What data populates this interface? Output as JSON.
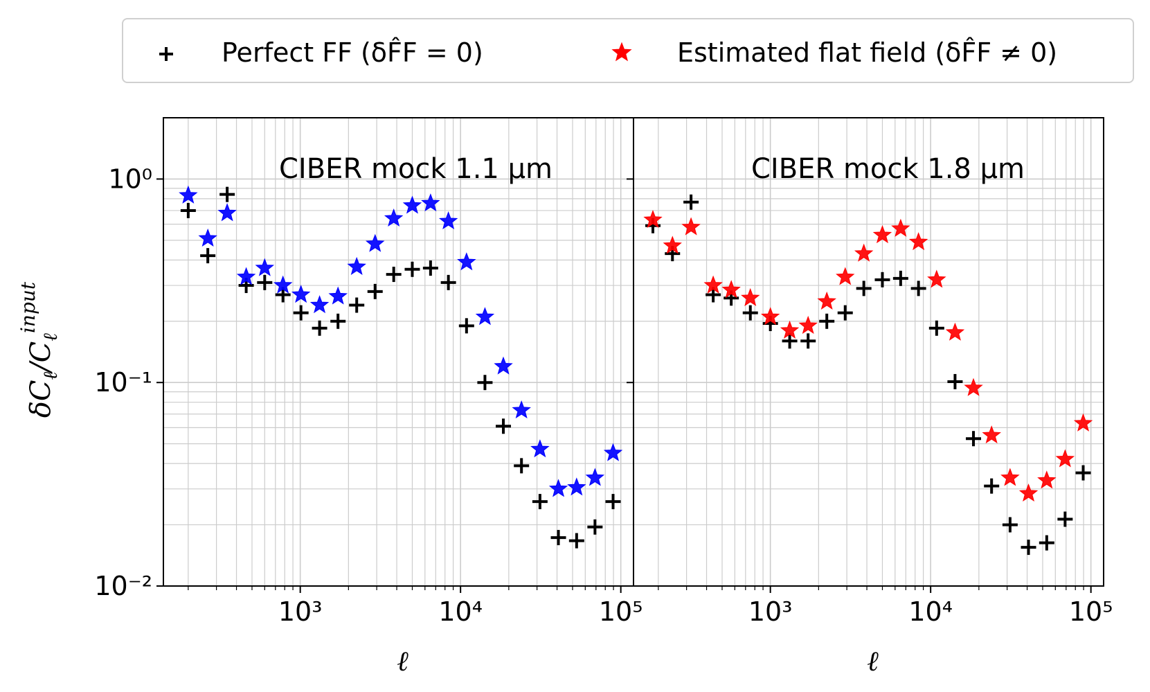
{
  "legend": {
    "perfect_ff": "Perfect FF (δF̂F = 0)",
    "estimated_ff": "Estimated flat field (δF̂F ≠ 0)"
  },
  "ylabel": "δC_ℓ/C_ℓ^input",
  "colors": {
    "perfect": "#000000",
    "estimated_left": "#0000ff",
    "estimated_right": "#ff0000",
    "grid": "#cccccc"
  },
  "chart_data": [
    {
      "type": "scatter",
      "title": "CIBER mock 1.1 μm",
      "xlabel": "ℓ",
      "ylabel": "δC_ℓ/C_ℓ^input",
      "xscale": "log",
      "yscale": "log",
      "xlim": [
        140,
        120000
      ],
      "ylim": [
        0.01,
        2.0
      ],
      "x_ticks": [
        {
          "value": 1000,
          "label": "10³"
        },
        {
          "value": 10000,
          "label": "10⁴"
        },
        {
          "value": 100000,
          "label": "10⁵"
        }
      ],
      "y_ticks": [
        {
          "value": 0.01,
          "label": "10⁻²"
        },
        {
          "value": 0.1,
          "label": "10⁻¹"
        },
        {
          "value": 1,
          "label": "10⁰"
        }
      ],
      "grid": true,
      "series": [
        {
          "name": "Perfect FF (δF̂F = 0)",
          "marker": "plus",
          "color": "#000000",
          "x": [
            200,
            265,
            350,
            460,
            600,
            780,
            1010,
            1320,
            1720,
            2250,
            2930,
            3830,
            5000,
            6500,
            8400,
            10900,
            14200,
            18500,
            24000,
            31300,
            40800,
            53000,
            69000,
            89500
          ],
          "y": [
            0.7,
            0.42,
            0.84,
            0.3,
            0.31,
            0.27,
            0.22,
            0.185,
            0.2,
            0.24,
            0.28,
            0.34,
            0.36,
            0.365,
            0.31,
            0.19,
            0.1,
            0.061,
            0.039,
            0.026,
            0.0173,
            0.0167,
            0.0195,
            0.026
          ]
        },
        {
          "name": "Estimated flat field (δF̂F ≠ 0)",
          "marker": "star",
          "color": "#0000ff",
          "x": [
            200,
            265,
            350,
            460,
            600,
            780,
            1010,
            1320,
            1720,
            2250,
            2930,
            3830,
            5000,
            6500,
            8400,
            10900,
            14200,
            18500,
            24000,
            31300,
            40800,
            53000,
            69000,
            89500
          ],
          "y": [
            0.83,
            0.51,
            0.68,
            0.33,
            0.365,
            0.3,
            0.27,
            0.24,
            0.265,
            0.37,
            0.48,
            0.64,
            0.74,
            0.76,
            0.62,
            0.39,
            0.21,
            0.12,
            0.073,
            0.047,
            0.03,
            0.0305,
            0.034,
            0.045
          ]
        }
      ]
    },
    {
      "type": "scatter",
      "title": "CIBER mock 1.8 μm",
      "xlabel": "ℓ",
      "ylabel": "",
      "xscale": "log",
      "yscale": "log",
      "xlim": [
        140,
        120000
      ],
      "ylim": [
        0.01,
        2.0
      ],
      "x_ticks": [
        {
          "value": 1000,
          "label": "10³"
        },
        {
          "value": 10000,
          "label": "10⁴"
        },
        {
          "value": 100000,
          "label": "10⁵"
        }
      ],
      "grid": true,
      "series": [
        {
          "name": "Perfect FF (δF̂F = 0)",
          "marker": "plus",
          "color": "#000000",
          "x": [
            185,
            245,
            320,
            440,
            570,
            750,
            1000,
            1320,
            1720,
            2250,
            2930,
            3830,
            5000,
            6500,
            8400,
            10900,
            14200,
            18500,
            24000,
            31300,
            40800,
            53000,
            69000,
            89500
          ],
          "y": [
            0.59,
            0.43,
            0.77,
            0.27,
            0.26,
            0.22,
            0.195,
            0.16,
            0.16,
            0.2,
            0.22,
            0.29,
            0.32,
            0.325,
            0.29,
            0.185,
            0.101,
            0.053,
            0.031,
            0.02,
            0.0155,
            0.0163,
            0.0213,
            0.036
          ]
        },
        {
          "name": "Estimated flat field (δF̂F ≠ 0)",
          "marker": "star",
          "color": "#ff0000",
          "x": [
            185,
            245,
            320,
            440,
            570,
            750,
            1000,
            1320,
            1720,
            2250,
            2930,
            3830,
            5000,
            6500,
            8400,
            10900,
            14200,
            18500,
            24000,
            31300,
            40800,
            53000,
            69000,
            89500
          ],
          "y": [
            0.63,
            0.47,
            0.58,
            0.3,
            0.285,
            0.26,
            0.21,
            0.18,
            0.19,
            0.25,
            0.33,
            0.43,
            0.53,
            0.57,
            0.49,
            0.32,
            0.176,
            0.094,
            0.055,
            0.034,
            0.0285,
            0.033,
            0.042,
            0.063
          ]
        }
      ]
    }
  ]
}
